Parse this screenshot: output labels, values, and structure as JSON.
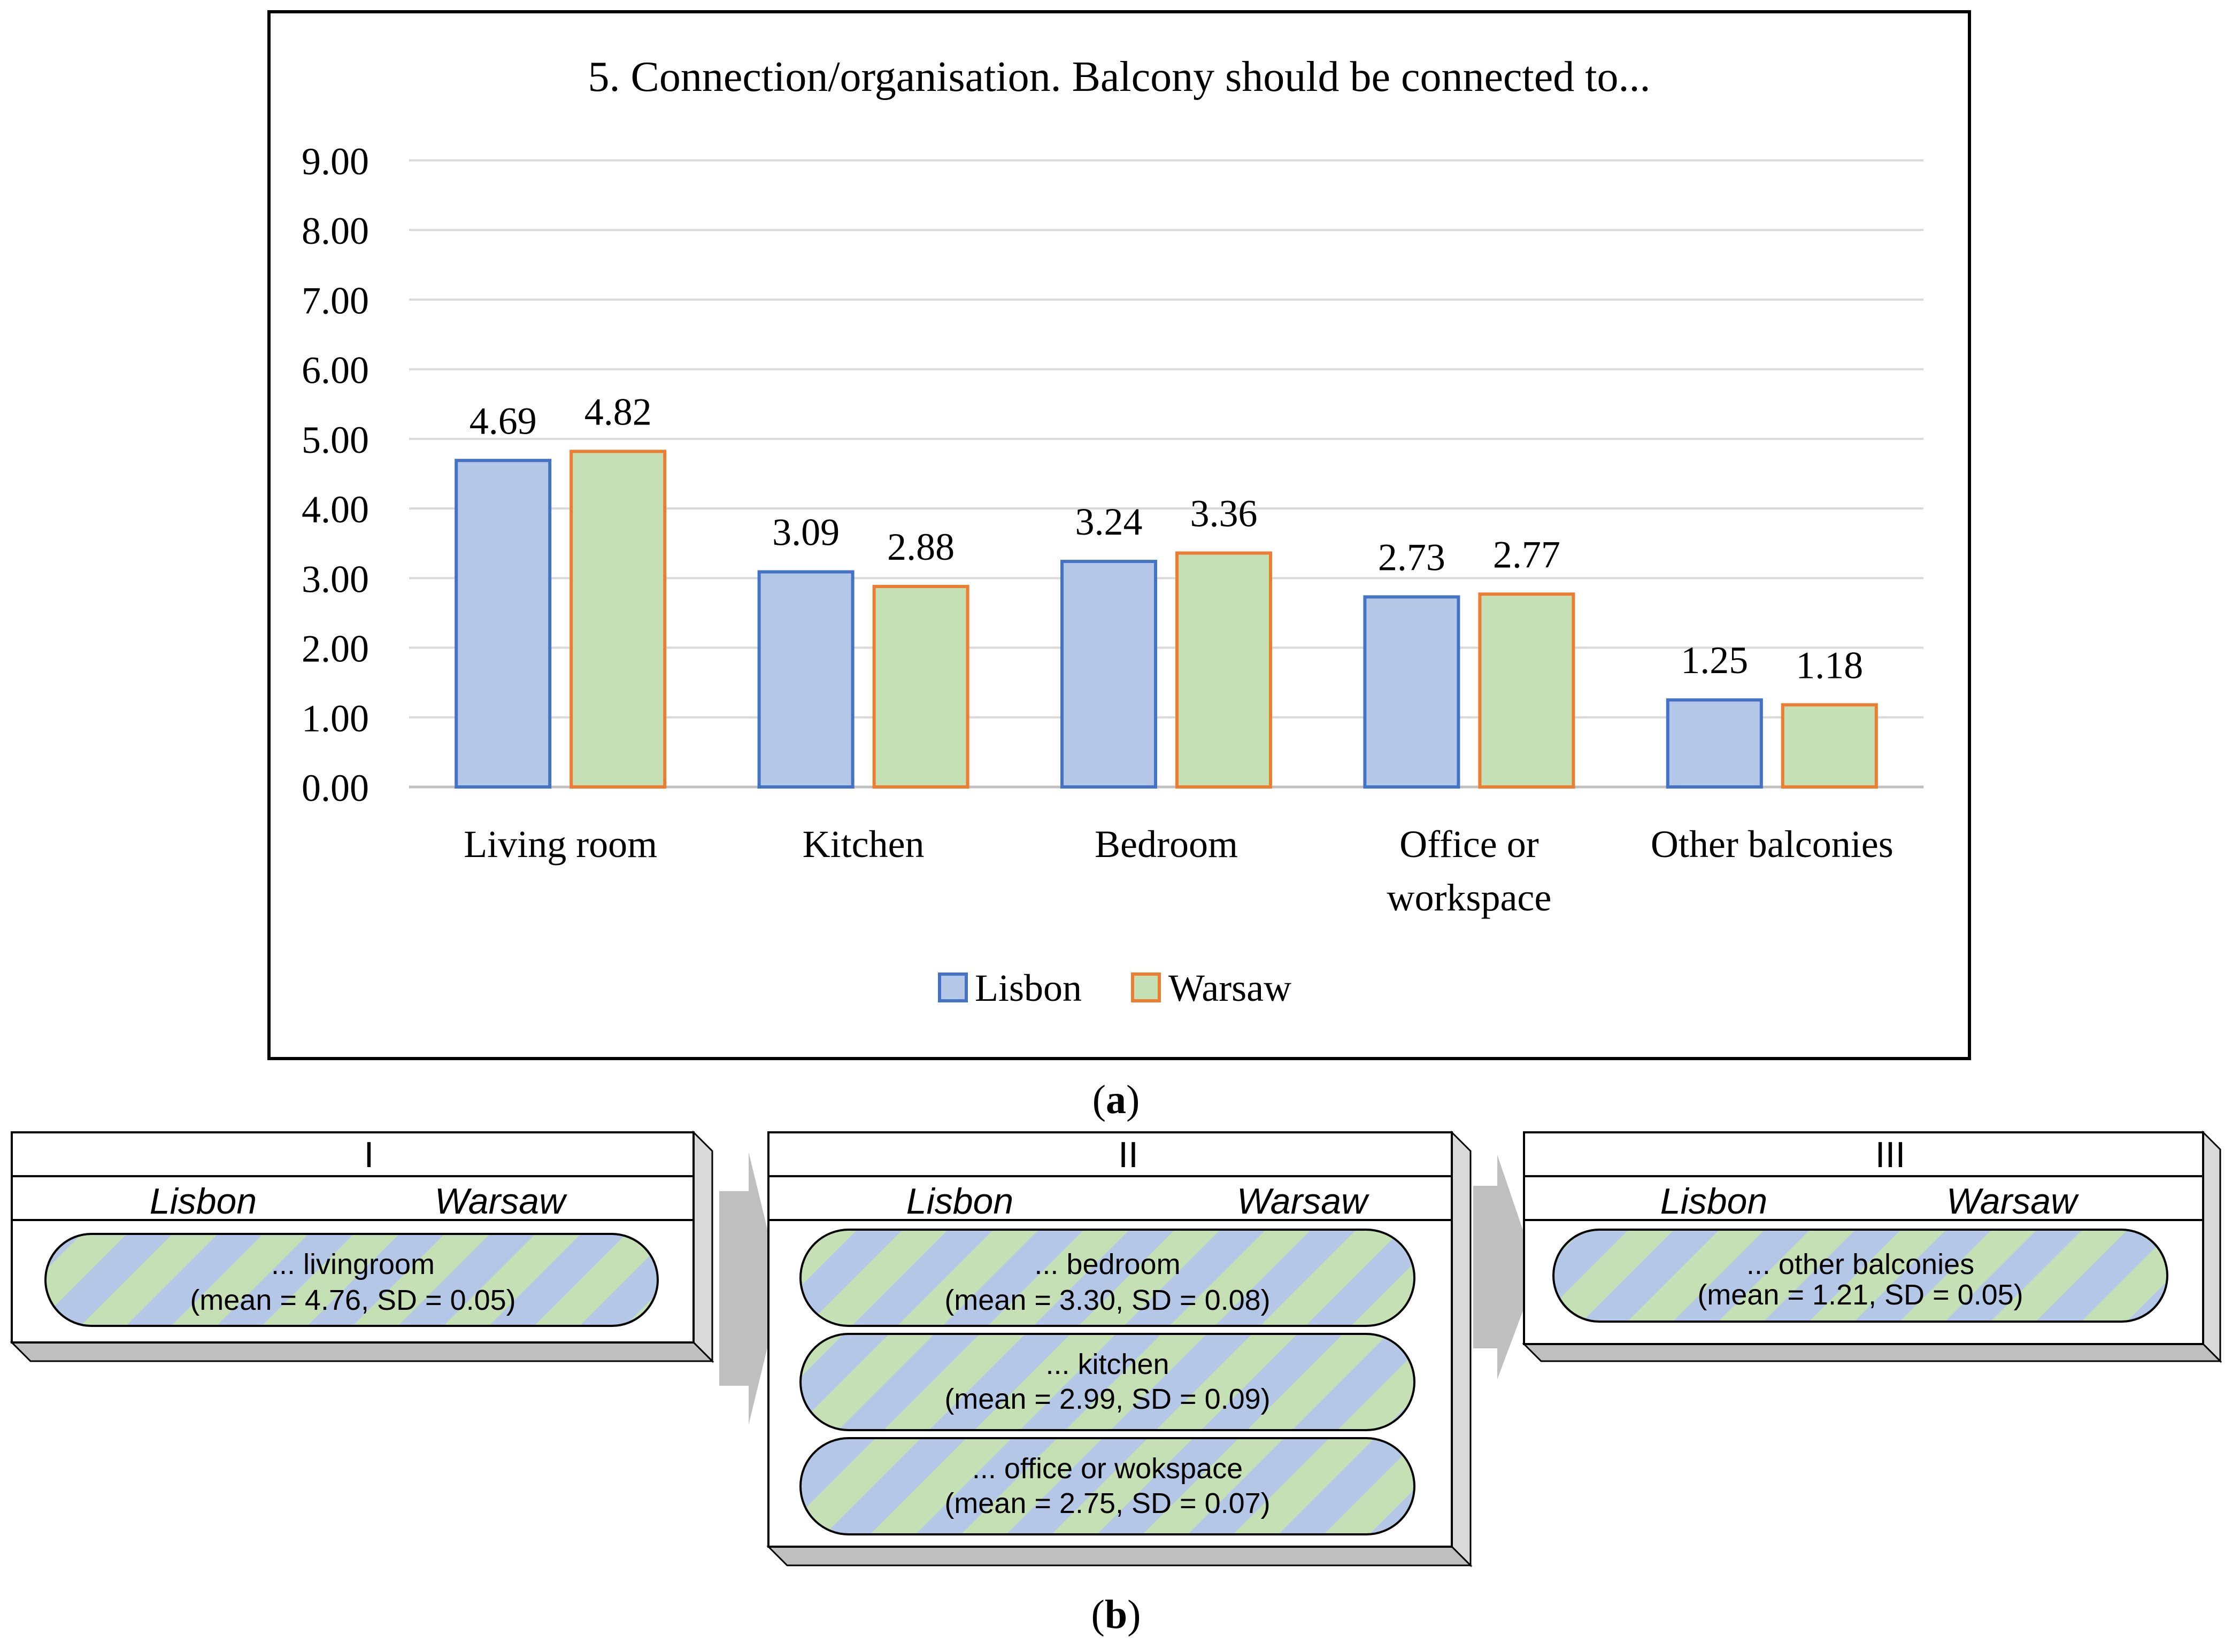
{
  "colors": {
    "lisbon_fill": "#b4c7e7",
    "lisbon_stroke": "#4472c4",
    "warsaw_fill": "#c5e0b4",
    "warsaw_stroke": "#ed7d31",
    "grid": "#d9d9d9",
    "axis": "#bfbfbf",
    "text": "#000000",
    "box_face": "#ffffff",
    "box_side": "#d9d9d9",
    "box_bottom": "#bfbfbf",
    "arrow": "#bfbfbf"
  },
  "chart_data": {
    "type": "bar",
    "title": "5. Connection/organisation. Balcony should be connected to...",
    "categories": [
      "Living room",
      "Kitchen",
      "Bedroom",
      "Office or workspace",
      "Other balconies"
    ],
    "category_lines": [
      [
        "Living room"
      ],
      [
        "Kitchen"
      ],
      [
        "Bedroom"
      ],
      [
        "Office or",
        "workspace"
      ],
      [
        "Other balconies"
      ]
    ],
    "series": [
      {
        "name": "Lisbon",
        "values": [
          4.69,
          3.09,
          3.24,
          2.73,
          1.25
        ],
        "labels": [
          "4.69",
          "3.09",
          "3.24",
          "2.73",
          "1.25"
        ]
      },
      {
        "name": "Warsaw",
        "values": [
          4.82,
          2.88,
          3.36,
          2.77,
          1.18
        ],
        "labels": [
          "4.82",
          "2.88",
          "3.36",
          "2.77",
          "1.18"
        ]
      }
    ],
    "y_ticks": [
      "0.00",
      "1.00",
      "2.00",
      "3.00",
      "4.00",
      "5.00",
      "6.00",
      "7.00",
      "8.00",
      "9.00"
    ],
    "ylim": [
      0,
      9
    ],
    "grid": true,
    "legend_position": "bottom",
    "xlabel": "",
    "ylabel": ""
  },
  "caption_a": {
    "open": "(",
    "letter": "a",
    "close": ")"
  },
  "caption_b": {
    "open": "(",
    "letter": "b",
    "close": ")"
  },
  "groups": [
    {
      "numeral": "I",
      "city_left": "Lisbon",
      "city_right": "Warsaw",
      "items": [
        {
          "line1": "... livingroom",
          "line2": "(mean = 4.76, SD = 0.05)"
        }
      ]
    },
    {
      "numeral": "II",
      "city_left": "Lisbon",
      "city_right": "Warsaw",
      "items": [
        {
          "line1": "...  bedroom",
          "line2": "(mean = 3.30, SD = 0.08)"
        },
        {
          "line1": "...  kitchen",
          "line2": "(mean = 2.99, SD = 0.09)"
        },
        {
          "line1": "...  office or wokspace",
          "line2": "(mean = 2.75, SD = 0.07)"
        }
      ]
    },
    {
      "numeral": "III",
      "city_left": "Lisbon",
      "city_right": "Warsaw",
      "items": [
        {
          "line1": "...  other balconies",
          "line2": "(mean = 1.21, SD = 0.05)"
        }
      ]
    }
  ]
}
